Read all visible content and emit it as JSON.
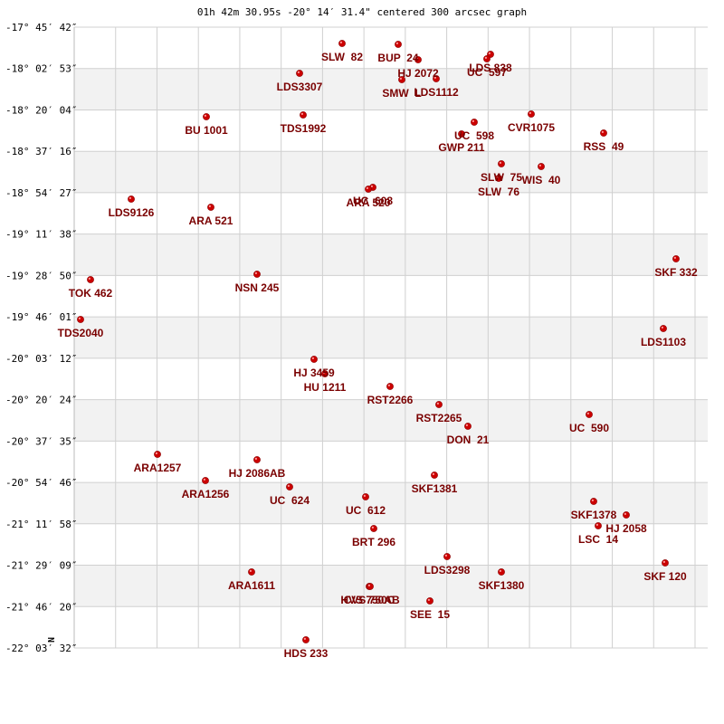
{
  "chart_data": {
    "type": "scatter",
    "title": "01h 42m 30.95s -20° 14′ 31.4\" centered 300 arcsec graph",
    "north_label": "N",
    "xlabel": "",
    "ylabel": "",
    "grid": true,
    "colors": {
      "point": "#cc0000",
      "label": "#7a0000",
      "band": "#f2f2f2",
      "grid": "#d0d0d0"
    },
    "y_ticks": [
      "-17° 45′ 42″",
      "-18° 02′ 53″",
      "-18° 20′ 04″",
      "-18° 37′ 16″",
      "-18° 54′ 27″",
      "-19° 11′ 38″",
      "-19° 28′ 50″",
      "-19° 46′ 01″",
      "-20° 03′ 12″",
      "-20° 20′ 24″",
      "-20° 37′ 35″",
      "-20° 54′ 46″",
      "-21° 11′ 58″",
      "-21° 29′ 09″",
      "-21° 46′ 20″",
      "-22° 03′ 32″"
    ],
    "x_range": [
      0,
      700
    ],
    "y_range": [
      0,
      686
    ],
    "points": [
      {
        "name": "SLW  82",
        "x": 296,
        "y": 18
      },
      {
        "name": "BUP  24",
        "x": 358,
        "y": 19
      },
      {
        "name": "LDS 838",
        "x": 460,
        "y": 30
      },
      {
        "name": "UC  597",
        "x": 456,
        "y": 35
      },
      {
        "name": "HJ 2072",
        "x": 380,
        "y": 36
      },
      {
        "name": "LDS3307",
        "x": 249,
        "y": 51
      },
      {
        "name": "SMW  L",
        "x": 362,
        "y": 58
      },
      {
        "name": "LDS1112",
        "x": 400,
        "y": 57
      },
      {
        "name": "TDS1992",
        "x": 253,
        "y": 97
      },
      {
        "name": "BU 1001",
        "x": 146,
        "y": 99
      },
      {
        "name": "CVR1075",
        "x": 505,
        "y": 96
      },
      {
        "name": "UC  598",
        "x": 442,
        "y": 105
      },
      {
        "name": "GWP 211",
        "x": 428,
        "y": 118
      },
      {
        "name": "RSS  49",
        "x": 585,
        "y": 117
      },
      {
        "name": "SLW  75",
        "x": 472,
        "y": 151
      },
      {
        "name": "WIS  40",
        "x": 516,
        "y": 154
      },
      {
        "name": "SLW  76",
        "x": 469,
        "y": 167
      },
      {
        "name": "UC  608",
        "x": 330,
        "y": 177
      },
      {
        "name": "ARA 520",
        "x": 325,
        "y": 179
      },
      {
        "name": "LDS9126",
        "x": 63,
        "y": 190
      },
      {
        "name": "ARA 521",
        "x": 151,
        "y": 199
      },
      {
        "name": "SKF 332",
        "x": 665,
        "y": 256
      },
      {
        "name": "NSN 245",
        "x": 202,
        "y": 273
      },
      {
        "name": "TOK 462",
        "x": 18,
        "y": 279
      },
      {
        "name": "TDS2040",
        "x": 7,
        "y": 323
      },
      {
        "name": "LDS1103",
        "x": 651,
        "y": 333
      },
      {
        "name": "HJ 3459",
        "x": 265,
        "y": 367
      },
      {
        "name": "HU 1211",
        "x": 277,
        "y": 383
      },
      {
        "name": "RST2266",
        "x": 349,
        "y": 397
      },
      {
        "name": "RST2265",
        "x": 403,
        "y": 417
      },
      {
        "name": "UC  590",
        "x": 569,
        "y": 428
      },
      {
        "name": "DON  21",
        "x": 435,
        "y": 441
      },
      {
        "name": "ARA1257",
        "x": 92,
        "y": 472
      },
      {
        "name": "HJ 2086AB",
        "x": 202,
        "y": 478
      },
      {
        "name": "SKF1381",
        "x": 398,
        "y": 495
      },
      {
        "name": "ARA1256",
        "x": 145,
        "y": 501
      },
      {
        "name": "UC  624",
        "x": 238,
        "y": 508
      },
      {
        "name": "UC  612",
        "x": 322,
        "y": 519
      },
      {
        "name": "SKF1378",
        "x": 574,
        "y": 524
      },
      {
        "name": "HJ 2058",
        "x": 610,
        "y": 539
      },
      {
        "name": "LSC  14",
        "x": 579,
        "y": 551
      },
      {
        "name": "BRT 296",
        "x": 331,
        "y": 554
      },
      {
        "name": "LDS3298",
        "x": 412,
        "y": 585
      },
      {
        "name": "SKF 120",
        "x": 653,
        "y": 592
      },
      {
        "name": "ARA1611",
        "x": 196,
        "y": 602
      },
      {
        "name": "SKF1380",
        "x": 472,
        "y": 602
      },
      {
        "name": "CVS 750C",
        "x": 326,
        "y": 618
      },
      {
        "name": "HVS 750AB",
        "x": 327,
        "y": 618
      },
      {
        "name": "SEE  15",
        "x": 393,
        "y": 634
      },
      {
        "name": "HDS 233",
        "x": 256,
        "y": 677
      }
    ]
  }
}
